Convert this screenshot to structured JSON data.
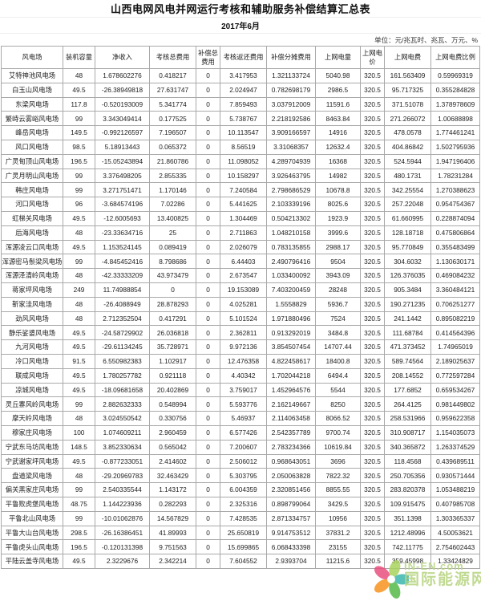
{
  "header": {
    "title": "山西电网风电并网运行考核和辅助服务补偿结算汇总表",
    "date": "2017年6月",
    "unit_note": "单位：元/兆瓦时、兆瓦、万元、%"
  },
  "table": {
    "columns": [
      "风电场",
      "装机容量",
      "净收入",
      "考核总费用",
      "补偿总费用",
      "考核返还费用",
      "补偿分摊费用",
      "上网电量",
      "上网电价",
      "上网电费",
      "上网电费比例"
    ],
    "rows": [
      [
        "艾特神池风电场",
        "48",
        "1.678602276",
        "0.418217",
        "0",
        "3.417953",
        "1.321133724",
        "5040.98",
        "320.5",
        "161.563409",
        "0.59969319"
      ],
      [
        "白玉山风电场",
        "49.5",
        "-26.38949818",
        "27.631747",
        "0",
        "2.024947",
        "0.782698179",
        "2986.5",
        "320.5",
        "95.717325",
        "0.355284828"
      ],
      [
        "东梁风电场",
        "117.8",
        "-0.520193009",
        "5.341774",
        "0",
        "7.859493",
        "3.037912009",
        "11591.6",
        "320.5",
        "371.51078",
        "1.378978609"
      ],
      [
        "繁峙云雾峪风电场",
        "99",
        "3.343049414",
        "0.177525",
        "0",
        "5.738767",
        "2.218192586",
        "8463.84",
        "320.5",
        "271.266072",
        "1.00688898"
      ],
      [
        "峰岳风电场",
        "149.5",
        "-0.992126597",
        "7.196507",
        "0",
        "10.113547",
        "3.909166597",
        "14916",
        "320.5",
        "478.0578",
        "1.774461241"
      ],
      [
        "风口风电场",
        "98.5",
        "5.18913443",
        "0.065372",
        "0",
        "8.56519",
        "3.31068357",
        "12632.4",
        "320.5",
        "404.86842",
        "1.502795936"
      ],
      [
        "广灵甸顶山风电场",
        "196.5",
        "-15.05243894",
        "21.860786",
        "0",
        "11.098052",
        "4.289704939",
        "16368",
        "320.5",
        "524.5944",
        "1.947196406"
      ],
      [
        "广灵月明山风电场",
        "99",
        "3.376498205",
        "2.855335",
        "0",
        "10.158297",
        "3.926463795",
        "14982",
        "320.5",
        "480.1731",
        "1.78231284"
      ],
      [
        "韩庄风电场",
        "99",
        "3.271751471",
        "1.170146",
        "0",
        "7.240584",
        "2.798686529",
        "10678.8",
        "320.5",
        "342.25554",
        "1.270388623"
      ],
      [
        "河口风电场",
        "96",
        "-3.684574196",
        "7.02286",
        "0",
        "5.441625",
        "2.103339196",
        "8025.6",
        "320.5",
        "257.22048",
        "0.954754367"
      ],
      [
        "虹梯关风电场",
        "49.5",
        "-12.6005693",
        "13.400825",
        "0",
        "1.304469",
        "0.504213302",
        "1923.9",
        "320.5",
        "61.660995",
        "0.228874094"
      ],
      [
        "后海风电场",
        "48",
        "-23.33634716",
        "25",
        "0",
        "2.711863",
        "1.048210158",
        "3999.6",
        "320.5",
        "128.18718",
        "0.475806864"
      ],
      [
        "浑源凌云口风电场",
        "49.5",
        "1.153524145",
        "0.089419",
        "0",
        "2.026079",
        "0.783135855",
        "2988.17",
        "320.5",
        "95.770849",
        "0.355483499"
      ],
      [
        "浑源密马鬃梁风电场",
        "99",
        "-4.845452416",
        "8.798686",
        "0",
        "6.44403",
        "2.490796416",
        "9504",
        "320.5",
        "304.6032",
        "1.130630171"
      ],
      [
        "浑源泽清岭风电场",
        "48",
        "-42.33333209",
        "43.973479",
        "0",
        "2.673547",
        "1.033400092",
        "3943.09",
        "320.5",
        "126.376035",
        "0.469084232"
      ],
      [
        "蒋家坪风电场",
        "249",
        "11.74988854",
        "0",
        "0",
        "19.153089",
        "7.403200459",
        "28248",
        "320.5",
        "905.3484",
        "3.360484121"
      ],
      [
        "靳家洼风电场",
        "48",
        "-26.4088949",
        "28.878293",
        "0",
        "4.025281",
        "1.5558829",
        "5936.7",
        "320.5",
        "190.271235",
        "0.706251277"
      ],
      [
        "劲风风电场",
        "48",
        "2.712352504",
        "0.417291",
        "0",
        "5.101524",
        "1.971880496",
        "7524",
        "320.5",
        "241.1442",
        "0.895082219"
      ],
      [
        "静乐娑婆风电场",
        "49.5",
        "-24.58729902",
        "26.036818",
        "0",
        "2.362811",
        "0.913292019",
        "3484.8",
        "320.5",
        "111.68784",
        "0.414564396"
      ],
      [
        "九河风电场",
        "49.5",
        "-29.61134245",
        "35.728971",
        "0",
        "9.972136",
        "3.854507454",
        "14707.44",
        "320.5",
        "471.373452",
        "1.74965019"
      ],
      [
        "冷口风电场",
        "91.5",
        "6.550982383",
        "1.102917",
        "0",
        "12.476358",
        "4.822458617",
        "18400.8",
        "320.5",
        "589.74564",
        "2.189025637"
      ],
      [
        "联成风电场",
        "49.5",
        "1.780257782",
        "0.921118",
        "0",
        "4.40342",
        "1.702044218",
        "6494.4",
        "320.5",
        "208.14552",
        "0.772597284"
      ],
      [
        "凉城风电场",
        "49.5",
        "-18.09681658",
        "20.402869",
        "0",
        "3.759017",
        "1.452964576",
        "5544",
        "320.5",
        "177.6852",
        "0.659534267"
      ],
      [
        "灵丘寨风岭风电场",
        "99",
        "2.882632333",
        "0.548994",
        "0",
        "5.593776",
        "2.162149667",
        "8250",
        "320.5",
        "264.4125",
        "0.981449802"
      ],
      [
        "摩天岭风电场",
        "48",
        "3.024550542",
        "0.330756",
        "0",
        "5.46937",
        "2.114063458",
        "8066.52",
        "320.5",
        "258.531966",
        "0.959622358"
      ],
      [
        "穆家庄风电场",
        "100",
        "1.074609211",
        "2.960459",
        "0",
        "6.577426",
        "2.542357789",
        "9700.74",
        "320.5",
        "310.908717",
        "1.154035073"
      ],
      [
        "宁武东马坊风电场",
        "148.5",
        "3.852330634",
        "0.565042",
        "0",
        "7.200607",
        "2.783234366",
        "10619.84",
        "320.5",
        "340.365872",
        "1.263374529"
      ],
      [
        "宁武谢家坪风电场",
        "49.5",
        "-0.877233051",
        "2.414602",
        "0",
        "2.506012",
        "0.968643051",
        "3696",
        "320.5",
        "118.4568",
        "0.439689511"
      ],
      [
        "盘道梁风电场",
        "48",
        "-29.20969783",
        "32.463429",
        "0",
        "5.303795",
        "2.050063828",
        "7822.32",
        "320.5",
        "250.705356",
        "0.930571444"
      ],
      [
        "偏关黑家庄风电场",
        "99",
        "2.540335544",
        "1.143172",
        "0",
        "6.004359",
        "2.320851456",
        "8855.55",
        "320.5",
        "283.820378",
        "1.053488219"
      ],
      [
        "平鲁败虎堡风电场",
        "48.75",
        "1.144223936",
        "0.282293",
        "0",
        "2.325316",
        "0.898799064",
        "3429.5",
        "320.5",
        "109.915475",
        "0.407985708"
      ],
      [
        "平鲁北山风电场",
        "99",
        "-10.01062876",
        "14.567829",
        "0",
        "7.428535",
        "2.871334757",
        "10956",
        "320.5",
        "351.1398",
        "1.303365337"
      ],
      [
        "平鲁大山台风电场",
        "298.5",
        "-26.16386451",
        "41.89993",
        "0",
        "25.650819",
        "9.914753512",
        "37831.2",
        "320.5",
        "1212.48996",
        "4.50053621"
      ],
      [
        "平鲁虎头山风电场",
        "196.5",
        "-0.120131398",
        "9.751563",
        "0",
        "15.699865",
        "6.068433398",
        "23155",
        "320.5",
        "742.11775",
        "2.754602443"
      ],
      [
        "平陆云盖寺风电场",
        "49.5",
        "2.3229676",
        "2.342214",
        "0",
        "7.604552",
        "2.9393704",
        "11215.6",
        "320.5",
        "359.45998",
        "1.33424829"
      ]
    ]
  },
  "watermark": {
    "line1": "IN-EN.com",
    "line2": "国际能源网",
    "text_color": "#b9d584",
    "petal_colors": [
      "#e94f7e",
      "#a9d35e",
      "#3bb8ae",
      "#55b948",
      "#f7941e"
    ]
  }
}
